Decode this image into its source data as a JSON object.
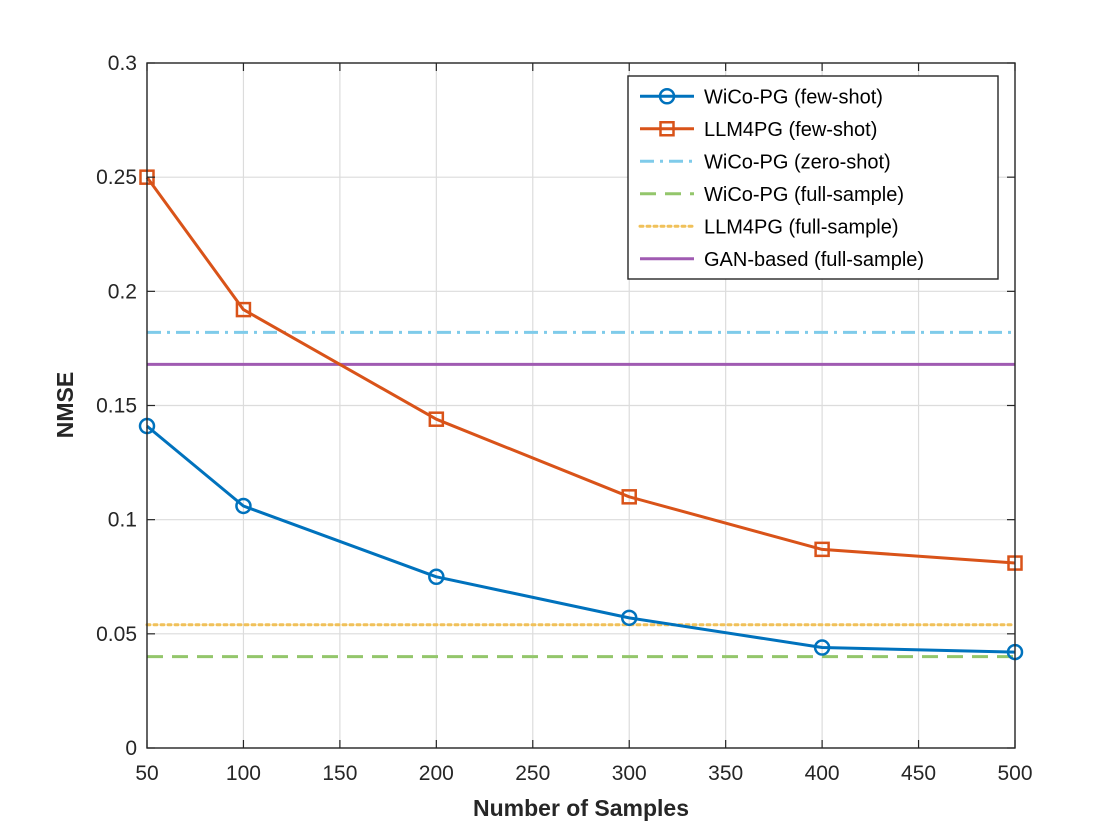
{
  "chart_data": {
    "type": "line",
    "title": "",
    "xlabel": "Number of Samples",
    "ylabel": "NMSE",
    "xlim": [
      50,
      500
    ],
    "ylim": [
      0,
      0.3
    ],
    "x_ticks": [
      "50",
      "100",
      "150",
      "200",
      "250",
      "300",
      "350",
      "400",
      "450",
      "500"
    ],
    "y_ticks": [
      "0",
      "0.05",
      "0.1",
      "0.15",
      "0.2",
      "0.25",
      "0.3"
    ],
    "grid": true,
    "legend_position": "top-right",
    "x": [
      50,
      100,
      200,
      300,
      400,
      500
    ],
    "series": [
      {
        "name": "WiCo-PG (few-shot)",
        "kind": "markers-line",
        "marker": "circle",
        "style": "solid",
        "color": "#0072BD",
        "values": [
          0.141,
          0.106,
          0.075,
          0.057,
          0.044,
          0.042
        ]
      },
      {
        "name": "LLM4PG (few-shot)",
        "kind": "markers-line",
        "marker": "square",
        "style": "solid",
        "color": "#D95319",
        "values": [
          0.25,
          0.192,
          0.144,
          0.11,
          0.087,
          0.081
        ]
      },
      {
        "name": "WiCo-PG (zero-shot)",
        "kind": "constant",
        "style": "dashdot",
        "color": "#7FCBEA",
        "value": 0.182
      },
      {
        "name": "WiCo-PG (full-sample)",
        "kind": "constant",
        "style": "dashed",
        "color": "#93C66B",
        "value": 0.04
      },
      {
        "name": "LLM4PG (full-sample)",
        "kind": "constant",
        "style": "dotted",
        "color": "#F0C15A",
        "value": 0.054
      },
      {
        "name": "GAN-based (full-sample)",
        "kind": "constant",
        "style": "solid",
        "color": "#A05BB2",
        "value": 0.168
      }
    ]
  }
}
